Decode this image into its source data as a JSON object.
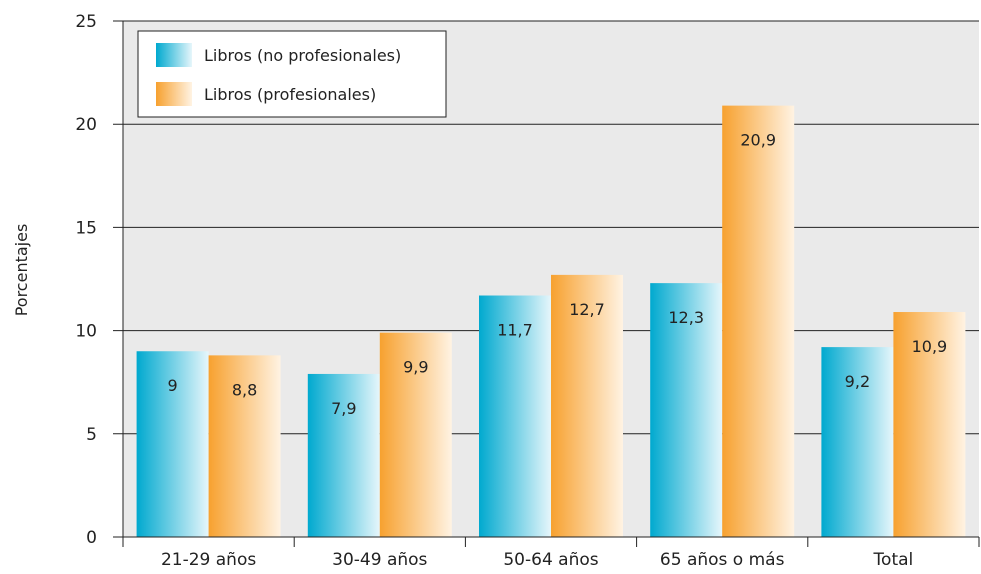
{
  "chart_data": {
    "type": "bar",
    "categories": [
      "21-29 años",
      "30-49 años",
      "50-64 años",
      "65 años o más",
      "Total"
    ],
    "series": [
      {
        "name": "Libros (no profesionales)",
        "values": [
          9,
          7.9,
          11.7,
          12.3,
          9.2
        ],
        "labels": [
          "9",
          "7,9",
          "11,7",
          "12,3",
          "9,2"
        ]
      },
      {
        "name": "Libros (profesionales)",
        "values": [
          8.8,
          9.9,
          12.7,
          20.9,
          10.9
        ],
        "labels": [
          "8,8",
          "9,9",
          "12,7",
          "20,9",
          "10,9"
        ]
      }
    ],
    "ylabel": "Porcentajes",
    "ylim": [
      0,
      25
    ],
    "yticks": [
      0,
      5,
      10,
      15,
      20,
      25
    ],
    "grid": true,
    "legend_position": "top-left",
    "colors": {
      "series0_dark": "#00a9cf",
      "series0_light": "#e6f6fb",
      "series1_dark": "#f7a12f",
      "series1_light": "#fff3e3",
      "plot_background": "#eaeaea"
    }
  }
}
